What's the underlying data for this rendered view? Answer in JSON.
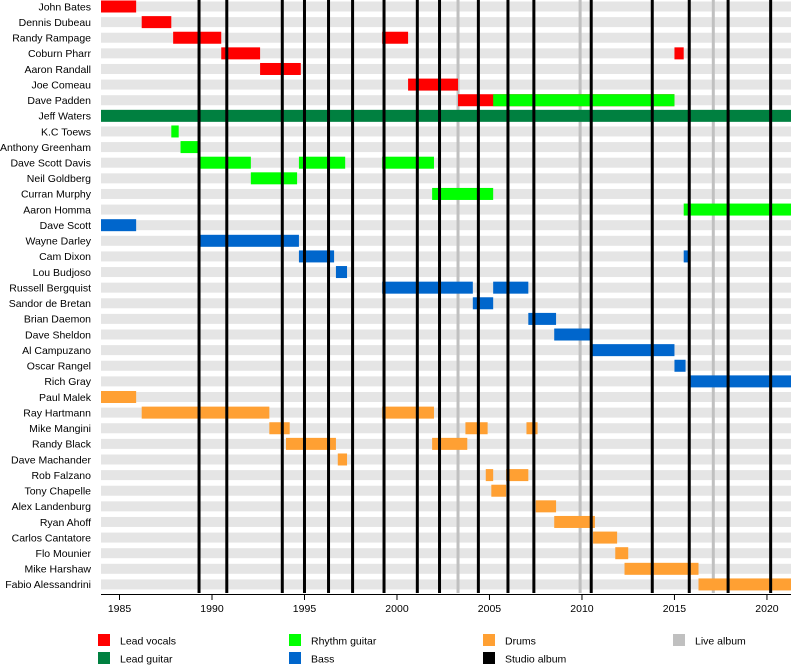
{
  "chart_data": {
    "type": "timeline",
    "title": "",
    "xlim": [
      1984.0,
      2021.3
    ],
    "x_ticks": [
      1985,
      1990,
      1995,
      2000,
      2005,
      2010,
      2015,
      2020
    ],
    "colors": {
      "lead_vocals": "#ff0000",
      "lead_guitar": "#008040",
      "rhythm_guitar": "#00ff00",
      "bass": "#0066cc",
      "drums": "#ffa033",
      "studio_album": "#000000",
      "live_album": "#c0c0c0",
      "row_band": "#e5e5e5"
    },
    "studio_albums": [
      1989.3,
      1990.8,
      1993.8,
      1995.0,
      1996.3,
      1997.6,
      1999.3,
      2001.1,
      2002.3,
      2004.4,
      2006.0,
      2007.4,
      2010.5,
      2013.8,
      2015.8,
      2017.9,
      2020.2
    ],
    "live_albums": [
      2003.3,
      2009.9,
      2017.1
    ],
    "members": [
      {
        "name": "John Bates",
        "bars": [
          {
            "role": "lead_vocals",
            "start": 1984.0,
            "end": 1985.9
          }
        ]
      },
      {
        "name": "Dennis Dubeau",
        "bars": [
          {
            "role": "lead_vocals",
            "start": 1986.2,
            "end": 1987.8
          }
        ]
      },
      {
        "name": "Randy Rampage",
        "bars": [
          {
            "role": "lead_vocals",
            "start": 1987.9,
            "end": 1990.5
          },
          {
            "role": "lead_vocals",
            "start": 1999.2,
            "end": 2000.6
          }
        ]
      },
      {
        "name": "Coburn Pharr",
        "bars": [
          {
            "role": "lead_vocals",
            "start": 1990.5,
            "end": 1992.6
          },
          {
            "role": "lead_vocals",
            "start": 2015.0,
            "end": 2015.5
          }
        ]
      },
      {
        "name": "Aaron Randall",
        "bars": [
          {
            "role": "lead_vocals",
            "start": 1992.6,
            "end": 1994.8
          }
        ]
      },
      {
        "name": "Joe Comeau",
        "bars": [
          {
            "role": "lead_vocals",
            "start": 2000.6,
            "end": 2003.3
          }
        ]
      },
      {
        "name": "Dave Padden",
        "bars": [
          {
            "role": "lead_vocals",
            "start": 2003.3,
            "end": 2015.0
          },
          {
            "role": "rhythm_guitar",
            "start": 2005.2,
            "end": 2015.0
          }
        ]
      },
      {
        "name": "Jeff Waters",
        "bars": [
          {
            "role": "lead_guitar",
            "start": 1984.0,
            "end": 2021.3
          }
        ]
      },
      {
        "name": "K.C Toews",
        "bars": [
          {
            "role": "rhythm_guitar",
            "start": 1987.8,
            "end": 1988.2
          }
        ]
      },
      {
        "name": "Anthony Greenham",
        "bars": [
          {
            "role": "rhythm_guitar",
            "start": 1988.3,
            "end": 1989.3
          }
        ]
      },
      {
        "name": "Dave Scott Davis",
        "bars": [
          {
            "role": "rhythm_guitar",
            "start": 1989.3,
            "end": 1992.1
          },
          {
            "role": "rhythm_guitar",
            "start": 1994.7,
            "end": 1997.2
          },
          {
            "role": "rhythm_guitar",
            "start": 1999.2,
            "end": 2002.0
          }
        ]
      },
      {
        "name": "Neil Goldberg",
        "bars": [
          {
            "role": "rhythm_guitar",
            "start": 1992.1,
            "end": 1994.6
          }
        ]
      },
      {
        "name": "Curran Murphy",
        "bars": [
          {
            "role": "rhythm_guitar",
            "start": 2001.9,
            "end": 2005.2
          }
        ]
      },
      {
        "name": "Aaron Homma",
        "bars": [
          {
            "role": "rhythm_guitar",
            "start": 2015.5,
            "end": 2021.3
          }
        ]
      },
      {
        "name": "Dave Scott",
        "bars": [
          {
            "role": "bass",
            "start": 1984.0,
            "end": 1985.9
          }
        ]
      },
      {
        "name": "Wayne Darley",
        "bars": [
          {
            "role": "bass",
            "start": 1989.3,
            "end": 1994.7
          }
        ]
      },
      {
        "name": "Cam Dixon",
        "bars": [
          {
            "role": "bass",
            "start": 1994.7,
            "end": 1996.6
          },
          {
            "role": "bass",
            "start": 2015.5,
            "end": 2015.8
          }
        ]
      },
      {
        "name": "Lou Budjoso",
        "bars": [
          {
            "role": "bass",
            "start": 1996.7,
            "end": 1997.3
          }
        ]
      },
      {
        "name": "Russell Bergquist",
        "bars": [
          {
            "role": "bass",
            "start": 1999.2,
            "end": 2004.1
          },
          {
            "role": "bass",
            "start": 2005.2,
            "end": 2007.1
          }
        ]
      },
      {
        "name": "Sandor de Bretan",
        "bars": [
          {
            "role": "bass",
            "start": 2004.1,
            "end": 2005.2
          }
        ]
      },
      {
        "name": "Brian Daemon",
        "bars": [
          {
            "role": "bass",
            "start": 2007.1,
            "end": 2008.6
          }
        ]
      },
      {
        "name": "Dave Sheldon",
        "bars": [
          {
            "role": "bass",
            "start": 2008.5,
            "end": 2010.5
          }
        ]
      },
      {
        "name": "Al Campuzano",
        "bars": [
          {
            "role": "bass",
            "start": 2010.5,
            "end": 2015.0
          }
        ]
      },
      {
        "name": "Oscar Rangel",
        "bars": [
          {
            "role": "bass",
            "start": 2015.0,
            "end": 2015.6
          }
        ]
      },
      {
        "name": "Rich Gray",
        "bars": [
          {
            "role": "bass",
            "start": 2015.8,
            "end": 2021.3
          }
        ]
      },
      {
        "name": "Paul Malek",
        "bars": [
          {
            "role": "drums",
            "start": 1984.0,
            "end": 1985.9
          }
        ]
      },
      {
        "name": "Ray Hartmann",
        "bars": [
          {
            "role": "drums",
            "start": 1986.2,
            "end": 1993.1
          },
          {
            "role": "drums",
            "start": 1999.2,
            "end": 2002.0
          }
        ]
      },
      {
        "name": "Mike Mangini",
        "bars": [
          {
            "role": "drums",
            "start": 1993.1,
            "end": 1994.2
          },
          {
            "role": "drums",
            "start": 2003.7,
            "end": 2004.9
          },
          {
            "role": "drums",
            "start": 2007.0,
            "end": 2007.6
          }
        ]
      },
      {
        "name": "Randy Black",
        "bars": [
          {
            "role": "drums",
            "start": 1994.0,
            "end": 1996.7
          },
          {
            "role": "drums",
            "start": 2001.9,
            "end": 2003.8
          }
        ]
      },
      {
        "name": "Dave Machander",
        "bars": [
          {
            "role": "drums",
            "start": 1996.8,
            "end": 1997.3
          }
        ]
      },
      {
        "name": "Rob Falzano",
        "bars": [
          {
            "role": "drums",
            "start": 2004.8,
            "end": 2005.2
          },
          {
            "role": "drums",
            "start": 2005.9,
            "end": 2007.1
          }
        ]
      },
      {
        "name": "Tony Chapelle",
        "bars": [
          {
            "role": "drums",
            "start": 2005.1,
            "end": 2005.9
          }
        ]
      },
      {
        "name": "Alex Landenburg",
        "bars": [
          {
            "role": "drums",
            "start": 2007.5,
            "end": 2008.6
          }
        ]
      },
      {
        "name": "Ryan Ahoff",
        "bars": [
          {
            "role": "drums",
            "start": 2008.5,
            "end": 2010.7
          }
        ]
      },
      {
        "name": "Carlos Cantatore",
        "bars": [
          {
            "role": "drums",
            "start": 2010.6,
            "end": 2011.9
          }
        ]
      },
      {
        "name": "Flo Mounier",
        "bars": [
          {
            "role": "drums",
            "start": 2011.8,
            "end": 2012.5
          }
        ]
      },
      {
        "name": "Mike Harshaw",
        "bars": [
          {
            "role": "drums",
            "start": 2012.3,
            "end": 2016.3
          }
        ]
      },
      {
        "name": "Fabio Alessandrini",
        "bars": [
          {
            "role": "drums",
            "start": 2016.3,
            "end": 2021.3
          }
        ]
      }
    ],
    "legend": [
      {
        "key": "lead_vocals",
        "label": "Lead vocals"
      },
      {
        "key": "lead_guitar",
        "label": "Lead guitar"
      },
      {
        "key": "rhythm_guitar",
        "label": "Rhythm guitar"
      },
      {
        "key": "bass",
        "label": "Bass"
      },
      {
        "key": "drums",
        "label": "Drums"
      },
      {
        "key": "studio_album",
        "label": "Studio album"
      },
      {
        "key": "live_album",
        "label": "Live album"
      }
    ]
  }
}
